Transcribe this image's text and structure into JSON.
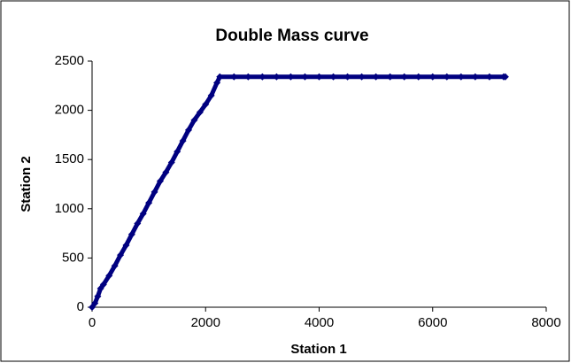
{
  "chart_data": {
    "type": "line",
    "title": "Double Mass curve",
    "x_label": "Station 1",
    "y_label": "Station 2",
    "x": [
      0,
      50,
      100,
      150,
      200,
      300,
      400,
      500,
      600,
      700,
      800,
      900,
      1000,
      1100,
      1200,
      1300,
      1400,
      1500,
      1600,
      1700,
      1800,
      1900,
      2000,
      2100,
      2200,
      2250,
      2500,
      2750,
      3000,
      3250,
      3500,
      3750,
      4000,
      4250,
      4500,
      4750,
      5000,
      5250,
      5500,
      5750,
      6000,
      6250,
      6500,
      6750,
      7000,
      7250,
      7280
    ],
    "values": [
      0,
      40,
      110,
      190,
      230,
      320,
      420,
      530,
      630,
      740,
      850,
      950,
      1060,
      1170,
      1280,
      1370,
      1470,
      1580,
      1690,
      1800,
      1900,
      1980,
      2060,
      2150,
      2280,
      2340,
      2340,
      2340,
      2340,
      2340,
      2340,
      2340,
      2340,
      2340,
      2340,
      2340,
      2340,
      2340,
      2340,
      2340,
      2340,
      2340,
      2340,
      2340,
      2340,
      2340,
      2340
    ],
    "color": "#000080",
    "marker": "diamond",
    "xlim": [
      0,
      8000
    ],
    "xticks": [
      0,
      2000,
      4000,
      6000,
      8000
    ],
    "ylim": [
      0,
      2500
    ],
    "yticks": [
      0,
      500,
      1000,
      1500,
      2000,
      2500
    ],
    "grid": false
  }
}
